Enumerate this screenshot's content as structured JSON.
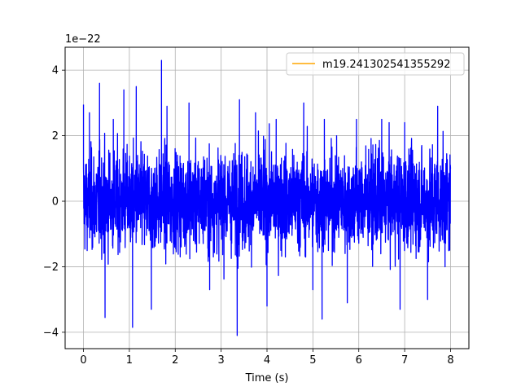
{
  "chart_data": {
    "type": "line",
    "title": "",
    "xlabel": "Time (s)",
    "ylabel": "",
    "y_offset_text": "1e−22",
    "xlim": [
      -0.4,
      8.4
    ],
    "ylim": [
      -4.5,
      4.7
    ],
    "y_scale_factor": 1e-22,
    "xticks": [
      0,
      1,
      2,
      3,
      4,
      5,
      6,
      7,
      8
    ],
    "xtick_labels": [
      "0",
      "1",
      "2",
      "3",
      "4",
      "5",
      "6",
      "7",
      "8"
    ],
    "yticks": [
      -4,
      -2,
      0,
      2,
      4
    ],
    "ytick_labels": [
      "−4",
      "−2",
      "0",
      "2",
      "4"
    ],
    "grid": true,
    "legend_position": "top-right",
    "series": [
      {
        "name": "",
        "color": "#0000ff",
        "description_values": {
          "x_range": [
            0,
            8
          ],
          "typical_amplitude": [
            -2,
            2
          ],
          "max": 4.3,
          "max_at": 1.7,
          "min": -4.1,
          "min_at": 3.35
        },
        "peaks": [
          {
            "x": 0.0,
            "y": 2.95
          },
          {
            "x": 0.13,
            "y": 2.7
          },
          {
            "x": 0.35,
            "y": 3.6
          },
          {
            "x": 0.47,
            "y": -3.55
          },
          {
            "x": 0.65,
            "y": 2.5
          },
          {
            "x": 0.88,
            "y": 3.4
          },
          {
            "x": 1.07,
            "y": -3.85
          },
          {
            "x": 1.15,
            "y": 3.5
          },
          {
            "x": 1.48,
            "y": -3.3
          },
          {
            "x": 1.7,
            "y": 4.3
          },
          {
            "x": 1.82,
            "y": 2.9
          },
          {
            "x": 2.3,
            "y": 3.0
          },
          {
            "x": 2.75,
            "y": -2.7
          },
          {
            "x": 3.35,
            "y": -4.1
          },
          {
            "x": 3.4,
            "y": 3.1
          },
          {
            "x": 3.75,
            "y": 2.7
          },
          {
            "x": 4.0,
            "y": -3.2
          },
          {
            "x": 4.2,
            "y": 2.5
          },
          {
            "x": 4.8,
            "y": 3.0
          },
          {
            "x": 5.0,
            "y": -2.7
          },
          {
            "x": 5.2,
            "y": -3.6
          },
          {
            "x": 5.25,
            "y": 2.5
          },
          {
            "x": 5.75,
            "y": -3.1
          },
          {
            "x": 5.95,
            "y": 2.5
          },
          {
            "x": 6.5,
            "y": 2.5
          },
          {
            "x": 6.9,
            "y": -3.3
          },
          {
            "x": 7.0,
            "y": 2.4
          },
          {
            "x": 7.5,
            "y": -3.0
          },
          {
            "x": 7.72,
            "y": 2.9
          },
          {
            "x": 7.88,
            "y": -2.0
          },
          {
            "x": 8.0,
            "y": 1.0
          }
        ]
      },
      {
        "name": "m19.241302541355292",
        "color": "#ffa500",
        "values": []
      }
    ]
  }
}
